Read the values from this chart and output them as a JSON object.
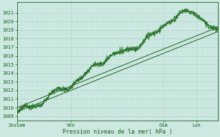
{
  "xlabel": "Pression niveau de la mer( hPa )",
  "bg_color": "#cce8e0",
  "grid_major_color": "#aacccc",
  "grid_minor_color": "#bbdddd",
  "line_dark": "#1a5c1a",
  "line_mid": "#2d7a2d",
  "ylim": [
    1008.5,
    1022.2
  ],
  "yticks": [
    1009,
    1010,
    1011,
    1012,
    1013,
    1014,
    1015,
    1016,
    1017,
    1018,
    1019,
    1020,
    1021
  ],
  "xtick_labels": [
    "JeuSam",
    "Ven",
    "Dim",
    "Lun"
  ],
  "xtick_positions": [
    0.0,
    0.27,
    0.73,
    0.895
  ],
  "tick_fontsize": 5.0,
  "xlabel_fontsize": 6.0,
  "n_points": 400,
  "fig_width": 3.2,
  "fig_height": 2.0,
  "dpi": 100
}
